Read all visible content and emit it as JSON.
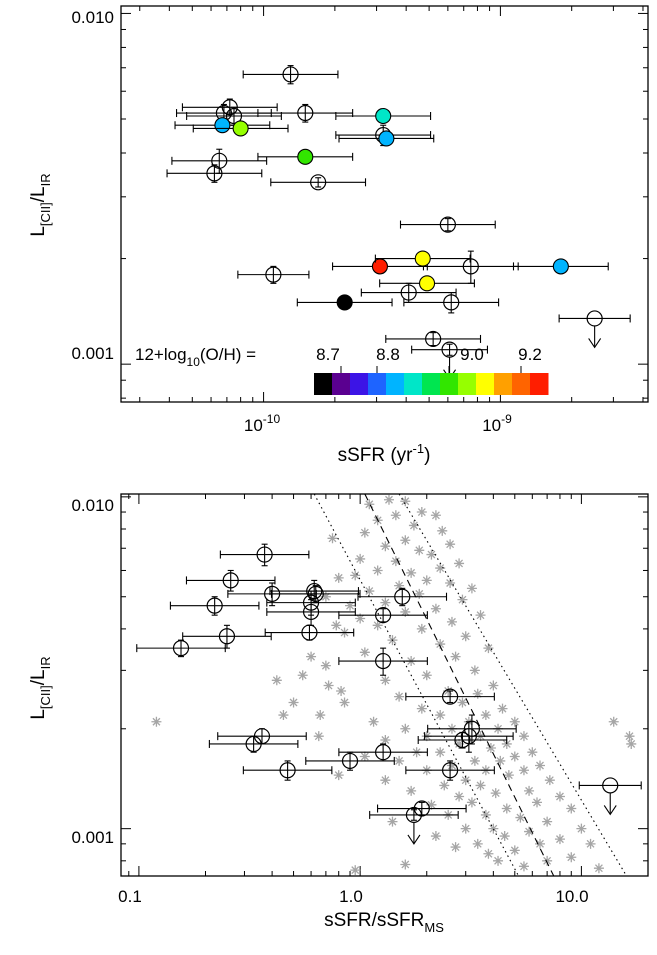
{
  "chart_data": [
    {
      "type": "scatter",
      "xlabel": "sSFR (yr",
      "xlabel_sup": "-1",
      "xlabel_end": ")",
      "ylabel_main": "L",
      "ylabel_sub1": "[CII]",
      "ylabel_sep": "/L",
      "ylabel_sub2": "IR",
      "xscale": "log",
      "yscale": "log",
      "xlim": [
        2.5e-11,
        4.2e-09
      ],
      "ylim": [
        0.00078,
        0.0105
      ],
      "xticks": [
        {
          "base": "10",
          "exp": "-10",
          "value": 1e-10
        },
        {
          "base": "10",
          "exp": "-9",
          "value": 1e-09
        }
      ],
      "yticks": [
        {
          "label": "0.001",
          "value": 0.001
        },
        {
          "label": "0.010",
          "value": 0.01
        }
      ],
      "colorbar": {
        "label_prefix": "12+log",
        "label_sub": "10",
        "label_suffix": "(O/H) =",
        "tick_labels": [
          "8.7",
          "8.8",
          "9.0",
          "9.2"
        ],
        "tick_values": [
          8.7,
          8.8,
          9.0,
          9.2
        ],
        "range": [
          8.625,
          9.275
        ],
        "colors": [
          "#000000",
          "#5a0090",
          "#3c14e6",
          "#1e64ff",
          "#00b4ff",
          "#00e6c8",
          "#00e650",
          "#32e600",
          "#96ff00",
          "#ffff00",
          "#ffa000",
          "#ff6400",
          "#ff1e00"
        ]
      },
      "points_open": [
        {
          "x": 1.3e-10,
          "y": 0.0067,
          "yerr": 0.0004,
          "xerr": 0.2
        },
        {
          "x": 7.2e-11,
          "y": 0.0054,
          "yerr": 0.0003,
          "xerr": 0.2
        },
        {
          "x": 6.8e-11,
          "y": 0.0052,
          "yerr": 0.0003,
          "xerr": 0.2
        },
        {
          "x": 7.5e-11,
          "y": 0.0051,
          "yerr": 0.0003,
          "xerr": 0.2
        },
        {
          "x": 1.5e-10,
          "y": 0.0052,
          "yerr": 0.0003,
          "xerr": 0.2
        },
        {
          "x": 3.2e-10,
          "y": 0.0045,
          "yerr": 0.0003,
          "xerr": 0.2
        },
        {
          "x": 6.5e-11,
          "y": 0.0038,
          "yerr": 0.0003,
          "xerr": 0.2
        },
        {
          "x": 6.2e-11,
          "y": 0.0035,
          "yerr": 0.0002,
          "xerr": 0.2
        },
        {
          "x": 1.7e-10,
          "y": 0.0033,
          "yerr": 0.0001,
          "xerr": 0.2
        },
        {
          "x": 6e-10,
          "y": 0.0025,
          "yerr": 0.0001,
          "xerr": 0.2
        },
        {
          "x": 1.1e-10,
          "y": 0.0018,
          "yerr": 0.0001,
          "xerr": 0.15
        },
        {
          "x": 4.1e-10,
          "y": 0.0016,
          "yerr": 0.0001,
          "xerr": 0.2
        },
        {
          "x": 6.2e-10,
          "y": 0.0015,
          "yerr": 0.0001,
          "xerr": 0.2
        },
        {
          "x": 7.5e-10,
          "y": 0.0019,
          "yerr": 0.0002,
          "xerr": 0.2
        },
        {
          "x": 5.2e-10,
          "y": 0.00118,
          "yerr": 5e-05,
          "xerr": 0.2
        },
        {
          "x": 6.1e-10,
          "y": 0.0011,
          "yerr": 4e-05,
          "xerr": 0.16,
          "upper": true
        }
      ],
      "points_upper": [
        {
          "x": 2.5e-09,
          "y": 0.00135,
          "xerr": 0.15
        }
      ],
      "points_filled": [
        {
          "x": 3.2e-10,
          "y": 0.0051,
          "z": 8.92,
          "xerr": 0.2
        },
        {
          "x": 3.3e-10,
          "y": 0.0044,
          "z": 8.83,
          "xerr": 0.2
        },
        {
          "x": 6.7e-11,
          "y": 0.0048,
          "z": 8.84,
          "xerr": 0.2
        },
        {
          "x": 8e-11,
          "y": 0.0047,
          "z": 9.05,
          "xerr": 0.2
        },
        {
          "x": 1.5e-10,
          "y": 0.0039,
          "z": 8.98,
          "xerr": 0.2
        },
        {
          "x": 3.1e-10,
          "y": 0.0019,
          "z": 9.25,
          "xerr": 0.2
        },
        {
          "x": 4.7e-10,
          "y": 0.002,
          "z": 9.12,
          "xerr": 0.2
        },
        {
          "x": 4.9e-10,
          "y": 0.0017,
          "z": 9.12,
          "xerr": 0.2
        },
        {
          "x": 2.2e-10,
          "y": 0.0015,
          "z": 8.65,
          "xerr": 0.2
        },
        {
          "x": 1.8e-09,
          "y": 0.0019,
          "z": 8.84,
          "xerr": 0.2
        }
      ]
    },
    {
      "type": "scatter",
      "xlabel": "sSFR/sSFR",
      "xlabel_sub": "MS",
      "ylabel_main": "L",
      "ylabel_sub1": "[CII]",
      "ylabel_sep": "/L",
      "ylabel_sub2": "IR",
      "xscale": "log",
      "yscale": "log",
      "xlim": [
        0.083,
        20
      ],
      "ylim": [
        0.00072,
        0.0102
      ],
      "xticks": [
        {
          "label": "0.1",
          "value": 0.1
        },
        {
          "label": "1.0",
          "value": 1.0
        },
        {
          "label": "10.0",
          "value": 10.0
        }
      ],
      "yticks": [
        {
          "label": "0.001",
          "value": 0.001
        },
        {
          "label": "0.010",
          "value": 0.01
        }
      ],
      "lines": [
        {
          "style": "dashed",
          "points": [
            [
              1.05,
              0.0102
            ],
            [
              7.5,
              0.00072
            ]
          ]
        },
        {
          "style": "dotted",
          "points": [
            [
              0.62,
              0.0102
            ],
            [
              5.2,
              0.00072
            ]
          ]
        },
        {
          "style": "dotted",
          "points": [
            [
              1.5,
              0.0102
            ],
            [
              16,
              0.00072
            ]
          ]
        }
      ],
      "points_open": [
        {
          "x": 0.37,
          "y": 0.0067,
          "yerr": 0.0005,
          "xerr": 0.2
        },
        {
          "x": 0.26,
          "y": 0.0056,
          "yerr": 0.0004,
          "xerr": 0.2
        },
        {
          "x": 0.4,
          "y": 0.0051,
          "yerr": 0.0004,
          "xerr": 0.2
        },
        {
          "x": 0.62,
          "y": 0.0052,
          "yerr": 0.0004,
          "xerr": 0.2
        },
        {
          "x": 0.63,
          "y": 0.0051,
          "yerr": 0.0003,
          "xerr": 0.2
        },
        {
          "x": 0.6,
          "y": 0.0048,
          "yerr": 0.0004,
          "xerr": 0.2
        },
        {
          "x": 0.6,
          "y": 0.0045,
          "yerr": 0.0004,
          "xerr": 0.2
        },
        {
          "x": 0.22,
          "y": 0.0047,
          "yerr": 0.0003,
          "xerr": 0.2
        },
        {
          "x": 0.25,
          "y": 0.0038,
          "yerr": 0.0003,
          "xerr": 0.2
        },
        {
          "x": 0.59,
          "y": 0.0039,
          "yerr": 0.0002,
          "xerr": 0.2
        },
        {
          "x": 0.155,
          "y": 0.0035,
          "yerr": 0.0002,
          "xerr": 0.2
        },
        {
          "x": 1.55,
          "y": 0.005,
          "yerr": 0.0003,
          "xerr": 0.2
        },
        {
          "x": 1.27,
          "y": 0.0044,
          "yerr": 0.0002,
          "xerr": 0.2
        },
        {
          "x": 1.27,
          "y": 0.0032,
          "yerr": 0.0003,
          "xerr": 0.2
        },
        {
          "x": 2.55,
          "y": 0.0025,
          "yerr": 0.0001,
          "xerr": 0.2
        },
        {
          "x": 0.36,
          "y": 0.0019,
          "yerr": 0.0001,
          "xerr": 0.2
        },
        {
          "x": 0.33,
          "y": 0.0018,
          "yerr": 0.0001,
          "xerr": 0.2
        },
        {
          "x": 0.47,
          "y": 0.0015,
          "yerr": 0.0001,
          "xerr": 0.2
        },
        {
          "x": 0.9,
          "y": 0.0016,
          "yerr": 0.0001,
          "xerr": 0.2
        },
        {
          "x": 1.27,
          "y": 0.0017,
          "yerr": 0.0001,
          "xerr": 0.2
        },
        {
          "x": 2.55,
          "y": 0.0015,
          "yerr": 0.0001,
          "xerr": 0.2
        },
        {
          "x": 2.9,
          "y": 0.00185,
          "yerr": 0.0001,
          "xerr": 0.2
        },
        {
          "x": 3.1,
          "y": 0.0019,
          "yerr": 0.0002,
          "xerr": 0.2
        },
        {
          "x": 3.2,
          "y": 0.002,
          "yerr": 0.0002,
          "xerr": 0.2
        },
        {
          "x": 1.9,
          "y": 0.00115,
          "yerr": 5e-05,
          "xerr": 0.2
        },
        {
          "x": 1.75,
          "y": 0.0011,
          "yerr": 4e-05,
          "xerr": 0.2,
          "upper": true
        }
      ],
      "points_upper": [
        {
          "x": 13.5,
          "y": 0.00135,
          "xerr": 0.14
        }
      ],
      "stars": [
        [
          1.1,
          0.0095
        ],
        [
          1.35,
          0.0098
        ],
        [
          1.6,
          0.0097
        ],
        [
          1.9,
          0.009
        ],
        [
          2.2,
          0.0088
        ],
        [
          1.45,
          0.0088
        ],
        [
          1.2,
          0.0085
        ],
        [
          1.75,
          0.0082
        ],
        [
          2.35,
          0.0079
        ],
        [
          1.05,
          0.0078
        ],
        [
          1.6,
          0.0074
        ],
        [
          2.55,
          0.0072
        ],
        [
          1.3,
          0.0071
        ],
        [
          1.85,
          0.0069
        ],
        [
          2.1,
          0.0067
        ],
        [
          1.0,
          0.0065
        ],
        [
          1.45,
          0.0064
        ],
        [
          2.8,
          0.0063
        ],
        [
          2.3,
          0.0061
        ],
        [
          1.2,
          0.006
        ],
        [
          1.7,
          0.0059
        ],
        [
          0.95,
          0.0058
        ],
        [
          2.0,
          0.0056
        ],
        [
          2.55,
          0.0055
        ],
        [
          1.5,
          0.0054
        ],
        [
          3.2,
          0.0053
        ],
        [
          1.1,
          0.0052
        ],
        [
          1.85,
          0.0051
        ],
        [
          2.9,
          0.0049
        ],
        [
          1.3,
          0.0048
        ],
        [
          0.9,
          0.0047
        ],
        [
          2.2,
          0.0046
        ],
        [
          1.6,
          0.0045
        ],
        [
          3.5,
          0.0044
        ],
        [
          1.0,
          0.0043
        ],
        [
          2.6,
          0.0042
        ],
        [
          1.2,
          0.0041
        ],
        [
          1.9,
          0.004
        ],
        [
          0.85,
          0.0039
        ],
        [
          3.0,
          0.0038
        ],
        [
          1.4,
          0.0037
        ],
        [
          2.3,
          0.0036
        ],
        [
          3.8,
          0.0035
        ],
        [
          1.05,
          0.0034
        ],
        [
          2.7,
          0.0033
        ],
        [
          1.7,
          0.0032
        ],
        [
          0.7,
          0.0031
        ],
        [
          3.3,
          0.003
        ],
        [
          2.0,
          0.0029
        ],
        [
          1.3,
          0.0028
        ],
        [
          4.0,
          0.0027
        ],
        [
          2.5,
          0.0026
        ],
        [
          3.4,
          0.00255
        ],
        [
          1.5,
          0.0025
        ],
        [
          0.85,
          0.0024
        ],
        [
          2.9,
          0.0024
        ],
        [
          4.4,
          0.0023
        ],
        [
          1.9,
          0.0023
        ],
        [
          3.7,
          0.0022
        ],
        [
          2.3,
          0.0022
        ],
        [
          1.15,
          0.0021
        ],
        [
          5.0,
          0.0021
        ],
        [
          3.1,
          0.0021
        ],
        [
          2.6,
          0.002
        ],
        [
          1.6,
          0.002
        ],
        [
          4.2,
          0.002
        ],
        [
          0.65,
          0.0019
        ],
        [
          3.5,
          0.0019
        ],
        [
          2.0,
          0.0019
        ],
        [
          5.5,
          0.0019
        ],
        [
          1.3,
          0.00185
        ],
        [
          4.6,
          0.0018
        ],
        [
          2.8,
          0.0018
        ],
        [
          3.9,
          0.00175
        ],
        [
          1.8,
          0.0017
        ],
        [
          6.0,
          0.0017
        ],
        [
          2.3,
          0.0017
        ],
        [
          1.05,
          0.00165
        ],
        [
          5.0,
          0.00165
        ],
        [
          3.3,
          0.0016
        ],
        [
          4.3,
          0.0016
        ],
        [
          1.5,
          0.0016
        ],
        [
          2.6,
          0.00155
        ],
        [
          6.5,
          0.00155
        ],
        [
          3.7,
          0.0015
        ],
        [
          2.0,
          0.0015
        ],
        [
          5.5,
          0.0015
        ],
        [
          0.8,
          0.00145
        ],
        [
          4.7,
          0.00145
        ],
        [
          3.0,
          0.0014
        ],
        [
          1.3,
          0.0014
        ],
        [
          7.2,
          0.0014
        ],
        [
          2.4,
          0.00135
        ],
        [
          3.5,
          0.00135
        ],
        [
          5.8,
          0.0013
        ],
        [
          1.7,
          0.0013
        ],
        [
          4.1,
          0.00128
        ],
        [
          2.8,
          0.00125
        ],
        [
          8.0,
          0.00125
        ],
        [
          3.2,
          0.0012
        ],
        [
          6.3,
          0.0012
        ],
        [
          2.1,
          0.00118
        ],
        [
          4.6,
          0.00115
        ],
        [
          9.0,
          0.00115
        ],
        [
          3.7,
          0.0011
        ],
        [
          2.5,
          0.0011
        ],
        [
          5.3,
          0.00108
        ],
        [
          1.4,
          0.00105
        ],
        [
          7.0,
          0.00105
        ],
        [
          4.0,
          0.001
        ],
        [
          3.0,
          0.001
        ],
        [
          10.0,
          0.001
        ],
        [
          5.8,
          0.00098
        ],
        [
          2.2,
          0.00095
        ],
        [
          4.5,
          0.00095
        ],
        [
          8.0,
          0.00093
        ],
        [
          3.4,
          0.0009
        ],
        [
          6.5,
          0.0009
        ],
        [
          11.0,
          0.0009
        ],
        [
          2.7,
          0.00088
        ],
        [
          5.0,
          0.00086
        ],
        [
          3.8,
          0.00084
        ],
        [
          9.0,
          0.00082
        ],
        [
          7.0,
          0.0008
        ],
        [
          4.2,
          0.0008
        ],
        [
          1.6,
          0.00078
        ],
        [
          5.5,
          0.00077
        ],
        [
          12.0,
          0.00076
        ],
        [
          0.75,
          0.0075
        ],
        [
          0.8,
          0.0057
        ],
        [
          0.7,
          0.005
        ],
        [
          0.78,
          0.0041
        ],
        [
          0.6,
          0.0033
        ],
        [
          0.55,
          0.0029
        ],
        [
          0.5,
          0.0024
        ],
        [
          0.45,
          0.0022
        ],
        [
          0.42,
          0.0028
        ],
        [
          0.12,
          0.0021
        ],
        [
          0.72,
          0.0027
        ],
        [
          0.66,
          0.0022
        ],
        [
          0.82,
          0.0026
        ],
        [
          14.0,
          0.0021
        ],
        [
          16.5,
          0.0019
        ],
        [
          16.8,
          0.0018
        ],
        [
          0.95,
          0.00075
        ]
      ]
    }
  ]
}
